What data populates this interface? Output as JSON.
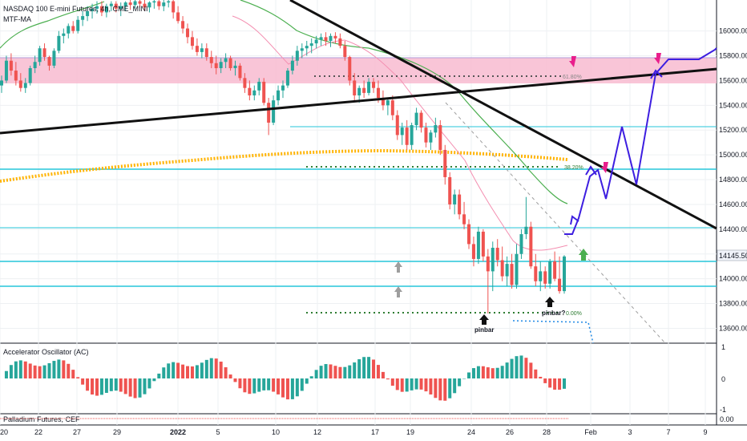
{
  "header": {
    "symbol": "NASDAQ 100 E-mini Futures, 4h, CME_MINI",
    "indicator": "MTF-MA"
  },
  "price_box": "14145.50",
  "fib_labels": {
    "f618": "61.80%",
    "f382": "38.20%",
    "f000": "0.00%"
  },
  "annotations": {
    "pinbar1": "pinbar",
    "pinbar2": "pinbar?"
  },
  "oscillator": {
    "title": "Accelerator Oscillator (AC)",
    "axis": [
      "1",
      "0",
      "-1"
    ]
  },
  "bottom_pane": {
    "title": "Palladium Futures, CEF",
    "axis_value": "0.00"
  },
  "colors": {
    "up": "#26a69a",
    "down": "#ef5350",
    "zone": "#f8bbd0",
    "teal": "#26c6da",
    "ma_green": "#4caf50",
    "ma_pink": "#f48fb1",
    "ma_orange": "#ffb300",
    "projection": "#3d1ee0",
    "arrow_pink": "#e91e8c"
  },
  "chart_data": {
    "type": "candlestick",
    "y_axis_ticks": [
      "16000.00",
      "15800.00",
      "15600.00",
      "15400.00",
      "15200.00",
      "15000.00",
      "14800.00",
      "14600.00",
      "14400.00",
      "14200.00",
      "14000.00",
      "13800.00",
      "13600.00"
    ],
    "ylim": [
      13480,
      16250
    ],
    "x_axis_ticks": [
      "20",
      "22",
      "27",
      "29",
      "2022",
      "5",
      "10",
      "12",
      "17",
      "19",
      "24",
      "26",
      "28",
      "Feb",
      "3",
      "7",
      "9"
    ],
    "candles": [
      [
        15560,
        15640,
        15500,
        15600
      ],
      [
        15600,
        15800,
        15580,
        15760
      ],
      [
        15760,
        15820,
        15640,
        15680
      ],
      [
        15680,
        15750,
        15560,
        15600
      ],
      [
        15600,
        15660,
        15510,
        15540
      ],
      [
        15540,
        15620,
        15500,
        15580
      ],
      [
        15580,
        15720,
        15560,
        15700
      ],
      [
        15700,
        15800,
        15660,
        15750
      ],
      [
        15750,
        15880,
        15720,
        15860
      ],
      [
        15860,
        15900,
        15760,
        15790
      ],
      [
        15790,
        15800,
        15680,
        15720
      ],
      [
        15720,
        15860,
        15700,
        15840
      ],
      [
        15840,
        16000,
        15820,
        15960
      ],
      [
        15960,
        16020,
        15900,
        15980
      ],
      [
        15980,
        16060,
        15940,
        16040
      ],
      [
        16040,
        16080,
        15980,
        16000
      ],
      [
        16000,
        16120,
        15980,
        16090
      ],
      [
        16090,
        16160,
        16040,
        16120
      ],
      [
        16120,
        16200,
        16080,
        16160
      ],
      [
        16160,
        16220,
        16100,
        16180
      ],
      [
        16180,
        16240,
        16140,
        16200
      ],
      [
        16200,
        16240,
        16120,
        16150
      ],
      [
        16150,
        16220,
        16110,
        16200
      ],
      [
        16200,
        16240,
        16160,
        16220
      ],
      [
        16220,
        16240,
        16150,
        16180
      ],
      [
        16180,
        16230,
        16120,
        16200
      ],
      [
        16200,
        16240,
        16160,
        16230
      ],
      [
        16230,
        16250,
        16170,
        16210
      ],
      [
        16210,
        16250,
        16180,
        16240
      ],
      [
        16240,
        16250,
        16190,
        16220
      ],
      [
        16220,
        16250,
        16160,
        16190
      ],
      [
        16190,
        16240,
        16150,
        16230
      ],
      [
        16230,
        16250,
        16180,
        16240
      ],
      [
        16240,
        16250,
        16170,
        16200
      ],
      [
        16200,
        16250,
        16160,
        16230
      ],
      [
        16230,
        16250,
        16190,
        16240
      ],
      [
        16240,
        16250,
        16100,
        16150
      ],
      [
        16150,
        16200,
        16060,
        16080
      ],
      [
        16080,
        16120,
        15980,
        16020
      ],
      [
        16020,
        16060,
        15900,
        15950
      ],
      [
        15950,
        16000,
        15850,
        15880
      ],
      [
        15880,
        15940,
        15800,
        15830
      ],
      [
        15830,
        15900,
        15780,
        15860
      ],
      [
        15860,
        15900,
        15760,
        15790
      ],
      [
        15790,
        15840,
        15700,
        15740
      ],
      [
        15740,
        15800,
        15650,
        15700
      ],
      [
        15700,
        15780,
        15660,
        15750
      ],
      [
        15750,
        15820,
        15700,
        15780
      ],
      [
        15780,
        15800,
        15680,
        15700
      ],
      [
        15700,
        15760,
        15640,
        15720
      ],
      [
        15720,
        15740,
        15600,
        15620
      ],
      [
        15620,
        15660,
        15500,
        15540
      ],
      [
        15540,
        15600,
        15440,
        15480
      ],
      [
        15480,
        15560,
        15440,
        15520
      ],
      [
        15520,
        15620,
        15480,
        15590
      ],
      [
        15590,
        15620,
        15400,
        15420
      ],
      [
        15420,
        15460,
        15160,
        15260
      ],
      [
        15260,
        15480,
        15240,
        15440
      ],
      [
        15440,
        15560,
        15400,
        15520
      ],
      [
        15520,
        15600,
        15460,
        15560
      ],
      [
        15560,
        15700,
        15540,
        15680
      ],
      [
        15680,
        15800,
        15650,
        15760
      ],
      [
        15760,
        15880,
        15720,
        15840
      ],
      [
        15840,
        15900,
        15780,
        15860
      ],
      [
        15860,
        15920,
        15800,
        15880
      ],
      [
        15880,
        15940,
        15820,
        15900
      ],
      [
        15900,
        15960,
        15860,
        15930
      ],
      [
        15930,
        15980,
        15880,
        15950
      ],
      [
        15950,
        15990,
        15880,
        15920
      ],
      [
        15920,
        15980,
        15870,
        15960
      ],
      [
        15960,
        15990,
        15900,
        15940
      ],
      [
        15940,
        15980,
        15860,
        15880
      ],
      [
        15880,
        15920,
        15760,
        15790
      ],
      [
        15790,
        15800,
        15560,
        15600
      ],
      [
        15600,
        15660,
        15440,
        15480
      ],
      [
        15480,
        15560,
        15420,
        15540
      ],
      [
        15540,
        15600,
        15460,
        15500
      ],
      [
        15500,
        15620,
        15480,
        15590
      ],
      [
        15590,
        15620,
        15500,
        15540
      ],
      [
        15540,
        15600,
        15420,
        15460
      ],
      [
        15460,
        15520,
        15360,
        15400
      ],
      [
        15400,
        15460,
        15320,
        15440
      ],
      [
        15440,
        15480,
        15280,
        15320
      ],
      [
        15320,
        15360,
        15120,
        15160
      ],
      [
        15160,
        15260,
        15080,
        15220
      ],
      [
        15220,
        15280,
        15040,
        15080
      ],
      [
        15080,
        15260,
        15040,
        15240
      ],
      [
        15240,
        15380,
        15200,
        15340
      ],
      [
        15340,
        15360,
        15180,
        15220
      ],
      [
        15220,
        15260,
        15060,
        15100
      ],
      [
        15100,
        15200,
        15040,
        15180
      ],
      [
        15180,
        15300,
        15140,
        15240
      ],
      [
        15240,
        15280,
        15000,
        15040
      ],
      [
        15040,
        15080,
        14760,
        14820
      ],
      [
        14820,
        14860,
        14560,
        14600
      ],
      [
        14600,
        14720,
        14520,
        14680
      ],
      [
        14680,
        14720,
        14480,
        14520
      ],
      [
        14520,
        14620,
        14400,
        14440
      ],
      [
        14440,
        14480,
        14240,
        14280
      ],
      [
        14280,
        14340,
        14100,
        14160
      ],
      [
        14160,
        14420,
        14120,
        14380
      ],
      [
        14380,
        14400,
        14140,
        14180
      ],
      [
        14180,
        14240,
        13720,
        14060
      ],
      [
        14060,
        14300,
        13900,
        14250
      ],
      [
        14250,
        14320,
        14100,
        14150
      ],
      [
        14150,
        14260,
        13980,
        14020
      ],
      [
        14020,
        14180,
        13940,
        14120
      ],
      [
        14120,
        14200,
        13920,
        13950
      ],
      [
        13950,
        14280,
        13920,
        14200
      ],
      [
        14200,
        14400,
        14160,
        14360
      ],
      [
        14360,
        14660,
        14320,
        14420
      ],
      [
        14420,
        14460,
        14080,
        14100
      ],
      [
        14100,
        14200,
        13940,
        13980
      ],
      [
        13980,
        14140,
        13900,
        14060
      ],
      [
        14060,
        14100,
        13920,
        13960
      ],
      [
        13960,
        14160,
        13920,
        14140
      ],
      [
        14140,
        14220,
        13980,
        14000
      ],
      [
        14000,
        14180,
        13880,
        13900
      ],
      [
        13900,
        14190,
        13880,
        14180
      ]
    ]
  }
}
